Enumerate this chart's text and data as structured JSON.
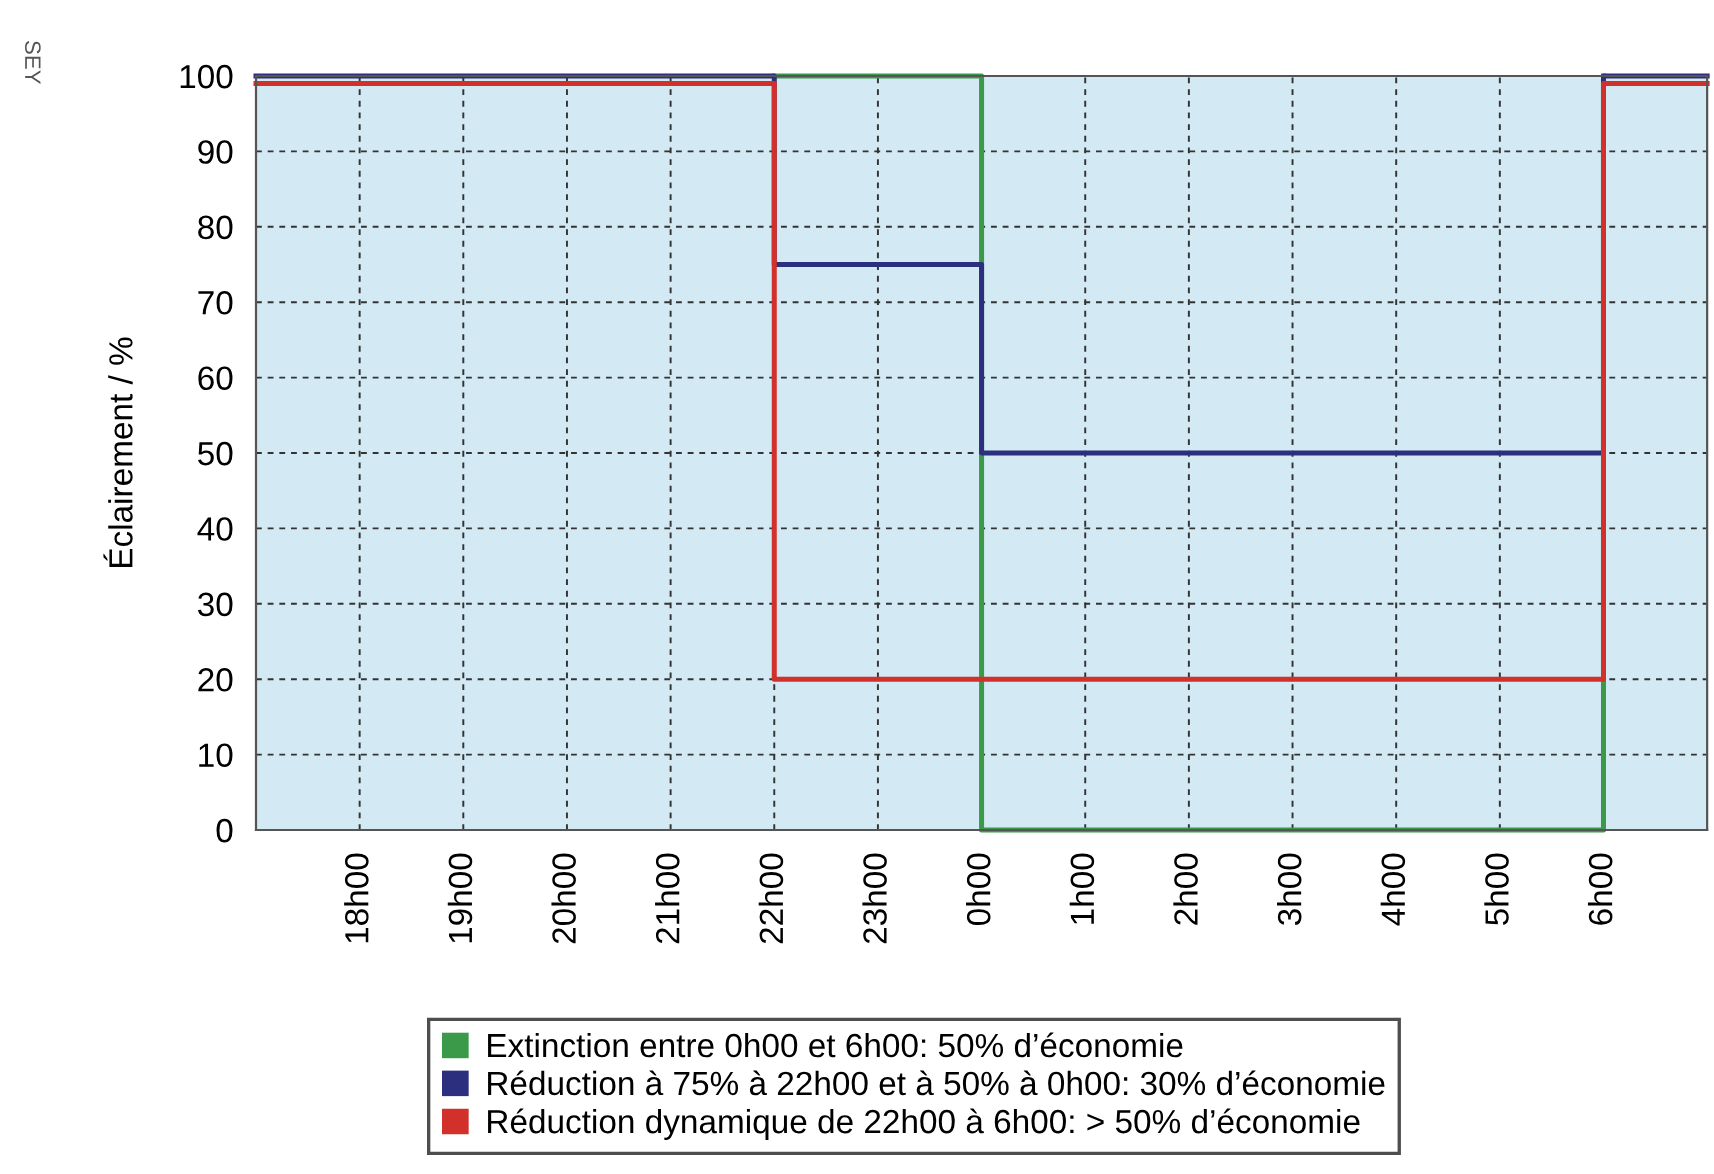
{
  "chart_data": {
    "type": "step",
    "ylabel": "Éclairement / %",
    "annotations": [
      "SEY"
    ],
    "categories": [
      null,
      "18h00",
      "19h00",
      "20h00",
      "21h00",
      "22h00",
      "23h00",
      "0h00",
      "1h00",
      "2h00",
      "3h00",
      "4h00",
      "5h00",
      "6h00",
      null
    ],
    "series": [
      {
        "name": "Extinction entre 0h00 et 6h00: 50% d’économie",
        "color": "#3a9a4a",
        "values": [
          null,
          null,
          null,
          null,
          null,
          100,
          100,
          0,
          0,
          0,
          0,
          0,
          0,
          100,
          null
        ]
      },
      {
        "name": "Réduction à 75% à 22h00 et à 50% à 0h00: 30% d’économie",
        "color": "#2b2f7e",
        "values": [
          100,
          100,
          100,
          100,
          100,
          75,
          75,
          50,
          50,
          50,
          50,
          50,
          50,
          100,
          100
        ]
      },
      {
        "name": "Réduction dynamique de 22h00 à 6h00: > 50% d’économie",
        "color": "#d2312b",
        "values": [
          99,
          99,
          99,
          99,
          99,
          20,
          20,
          20,
          20,
          20,
          20,
          20,
          20,
          99,
          99
        ]
      }
    ],
    "ylim": [
      0,
      100
    ],
    "yticks": [
      0,
      10,
      20,
      30,
      40,
      50,
      60,
      70,
      80,
      90,
      100
    ],
    "grid": true,
    "legend": "bottom",
    "line_style": "solid",
    "marker": "none"
  }
}
